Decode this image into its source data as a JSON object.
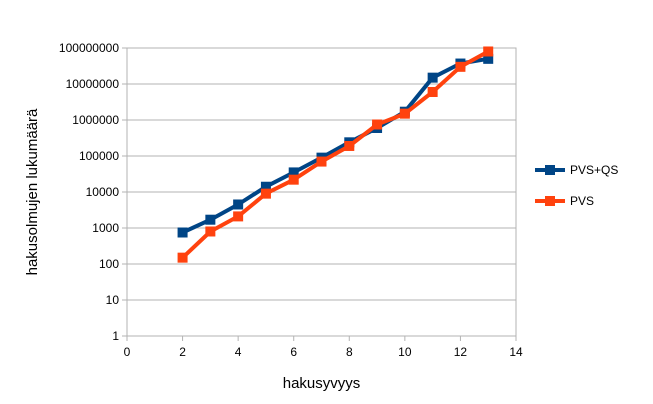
{
  "chart_data": {
    "type": "line",
    "title": "",
    "xlabel": "hakusyvyys",
    "ylabel": "hakusolmujen lukumäärä",
    "xlim": [
      0,
      14
    ],
    "x_ticks": [
      0,
      2,
      4,
      6,
      8,
      10,
      12,
      14
    ],
    "x_tick_labels": [
      "0",
      "2",
      "4",
      "6",
      "8",
      "10",
      "12",
      "14"
    ],
    "y_scale": "log",
    "ylim": [
      1,
      100000000
    ],
    "y_ticks": [
      1,
      10,
      100,
      1000,
      10000,
      100000,
      1000000,
      10000000,
      100000000
    ],
    "y_tick_labels": [
      "1",
      "10",
      "100",
      "1000",
      "10000",
      "100000",
      "1000000",
      "10000000",
      "100000000"
    ],
    "grid": "horizontal",
    "legend_position": "right",
    "series": [
      {
        "name": "PVS+QS",
        "color": "#004586",
        "marker": "square",
        "x": [
          2,
          3,
          4,
          5,
          6,
          7,
          8,
          9,
          10,
          11,
          12,
          13
        ],
        "y": [
          750,
          1700,
          4500,
          14000,
          35000,
          90000,
          240000,
          600000,
          1700000,
          15000000,
          37000000,
          50000000
        ]
      },
      {
        "name": "PVS",
        "color": "#ff420e",
        "marker": "square",
        "x": [
          2,
          3,
          4,
          5,
          6,
          7,
          8,
          9,
          10,
          11,
          12,
          13
        ],
        "y": [
          150,
          800,
          2100,
          9000,
          22000,
          70000,
          190000,
          750000,
          1500000,
          6000000,
          30000000,
          80000000
        ]
      }
    ]
  }
}
